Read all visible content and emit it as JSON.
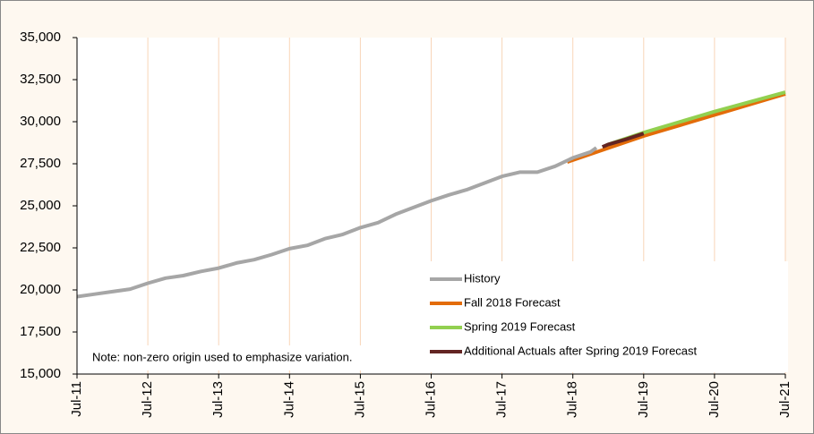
{
  "chart_data": {
    "type": "line",
    "note": "Note: non-zero origin used to emphasize variation.",
    "xlim": [
      2011.5,
      2021.5
    ],
    "xticks": [
      {
        "value": 2011.5,
        "label": "Jul-11"
      },
      {
        "value": 2012.5,
        "label": "Jul-12"
      },
      {
        "value": 2013.5,
        "label": "Jul-13"
      },
      {
        "value": 2014.5,
        "label": "Jul-14"
      },
      {
        "value": 2015.5,
        "label": "Jul-15"
      },
      {
        "value": 2016.5,
        "label": "Jul-16"
      },
      {
        "value": 2017.5,
        "label": "Jul-17"
      },
      {
        "value": 2018.5,
        "label": "Jul-18"
      },
      {
        "value": 2019.5,
        "label": "Jul-19"
      },
      {
        "value": 2020.5,
        "label": "Jul-20"
      },
      {
        "value": 2021.5,
        "label": "Jul-21"
      }
    ],
    "ylim": [
      15000,
      35000
    ],
    "yticks": [
      {
        "value": 15000,
        "label": "15,000"
      },
      {
        "value": 17500,
        "label": "17,500"
      },
      {
        "value": 20000,
        "label": "20,000"
      },
      {
        "value": 22500,
        "label": "22,500"
      },
      {
        "value": 25000,
        "label": "25,000"
      },
      {
        "value": 27500,
        "label": "27,500"
      },
      {
        "value": 30000,
        "label": "30,000"
      },
      {
        "value": 32500,
        "label": "32,500"
      },
      {
        "value": 35000,
        "label": "35,000"
      }
    ],
    "grid": true,
    "legend": "lower right",
    "series": [
      {
        "name": "History",
        "color": "#a6a6a6",
        "x": [
          2011.5,
          2011.75,
          2012.0,
          2012.25,
          2012.5,
          2012.75,
          2013.0,
          2013.25,
          2013.5,
          2013.75,
          2014.0,
          2014.25,
          2014.5,
          2014.75,
          2015.0,
          2015.25,
          2015.5,
          2015.75,
          2016.0,
          2016.25,
          2016.5,
          2016.75,
          2017.0,
          2017.25,
          2017.5,
          2017.75,
          2018.0,
          2018.25,
          2018.5,
          2018.75,
          2018.833
        ],
        "values": [
          19600,
          19750,
          19900,
          20050,
          20400,
          20700,
          20850,
          21100,
          21300,
          21600,
          21800,
          22100,
          22450,
          22650,
          23050,
          23300,
          23700,
          24000,
          24500,
          24900,
          25300,
          25650,
          25950,
          26350,
          26750,
          27000,
          27000,
          27350,
          27850,
          28200,
          28450
        ]
      },
      {
        "name": "Fall 2018 Forecast",
        "color": "#e36c09",
        "x": [
          2018.42,
          2019.5,
          2020.5,
          2021.5
        ],
        "values": [
          27600,
          29150,
          30400,
          31650
        ]
      },
      {
        "name": "Spring 2019 Forecast",
        "color": "#92d050",
        "x": [
          2019.0,
          2019.5,
          2020.5,
          2021.5
        ],
        "values": [
          28650,
          29350,
          30600,
          31750
        ]
      },
      {
        "name": "Additional Actuals after Spring 2019 Forecast",
        "color": "#632523",
        "x": [
          2018.917,
          2019.0,
          2019.25,
          2019.5
        ],
        "values": [
          28500,
          28650,
          28950,
          29300
        ]
      }
    ]
  }
}
